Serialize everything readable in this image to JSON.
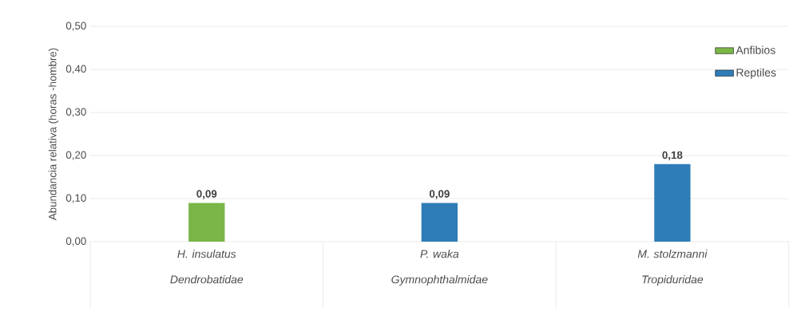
{
  "chart_data": {
    "type": "bar",
    "ylabel": "Abundancia relativa (horas -hombre)",
    "categories": [
      "H. insulatus Dendrobatidae",
      "P. waka Gymnophthalmidae",
      "M. stolzmanni Tropiduridae"
    ],
    "series": [
      {
        "name": "Anfibios",
        "color": "#7ab648",
        "values": [
          0.09,
          null,
          null
        ],
        "value_labels": [
          "0,09",
          null,
          null
        ]
      },
      {
        "name": "Reptiles",
        "color": "#2e7db7",
        "values": [
          null,
          0.09,
          0.18
        ],
        "value_labels": [
          null,
          "0,09",
          "0,18"
        ]
      }
    ],
    "ylim": [
      0,
      0.5
    ],
    "yticks": [
      {
        "value": 0,
        "label": "0,00"
      },
      {
        "value": 0.1,
        "label": "0,10"
      },
      {
        "value": 0.2,
        "label": "0,20"
      },
      {
        "value": 0.3,
        "label": "0,30"
      },
      {
        "value": 0.4,
        "label": "0,40"
      },
      {
        "value": 0.5,
        "label": "0,50"
      }
    ],
    "grid": "y",
    "legend": "top right"
  }
}
